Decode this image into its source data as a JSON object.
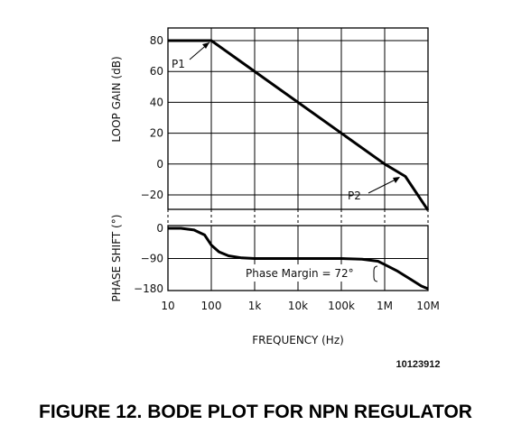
{
  "chart_data": [
    {
      "type": "line",
      "ylabel": "LOOP GAIN (dB)",
      "xscale": "log",
      "xlim": [
        10,
        10000000
      ],
      "ylim": [
        -30,
        80
      ],
      "yticks": [
        80,
        60,
        40,
        20,
        0,
        -20
      ],
      "grid": true,
      "series": [
        {
          "x": [
            10,
            100,
            1000000,
            3000000,
            10000000
          ],
          "y": [
            80,
            80,
            0,
            -8,
            -30
          ]
        }
      ],
      "annotations": [
        "P1",
        "P2"
      ]
    },
    {
      "type": "line",
      "ylabel": "PHASE SHIFT (°)",
      "xlabel": "FREQUENCY (Hz)",
      "xscale": "log",
      "xlim": [
        10,
        10000000
      ],
      "ylim": [
        -180,
        0
      ],
      "yticks": [
        0,
        -90,
        -180
      ],
      "xticks": [
        "10",
        "100",
        "1k",
        "10k",
        "100k",
        "1M",
        "10M"
      ],
      "grid": true,
      "series": [
        {
          "x": [
            10,
            20,
            40,
            70,
            100,
            150,
            250,
            500,
            1000,
            10000,
            100000,
            300000,
            700000,
            1000000,
            2000000,
            4000000,
            7000000,
            10000000
          ],
          "y": [
            0,
            0,
            -5,
            -20,
            -50,
            -70,
            -82,
            -88,
            -90,
            -90,
            -90,
            -92,
            -98,
            -108,
            -128,
            -152,
            -172,
            -180
          ]
        }
      ],
      "annotations": [
        "Phase Margin = 72°"
      ]
    }
  ],
  "figure": {
    "id": "10123912",
    "caption": "FIGURE 12. BODE PLOT FOR NPN REGULATOR"
  }
}
